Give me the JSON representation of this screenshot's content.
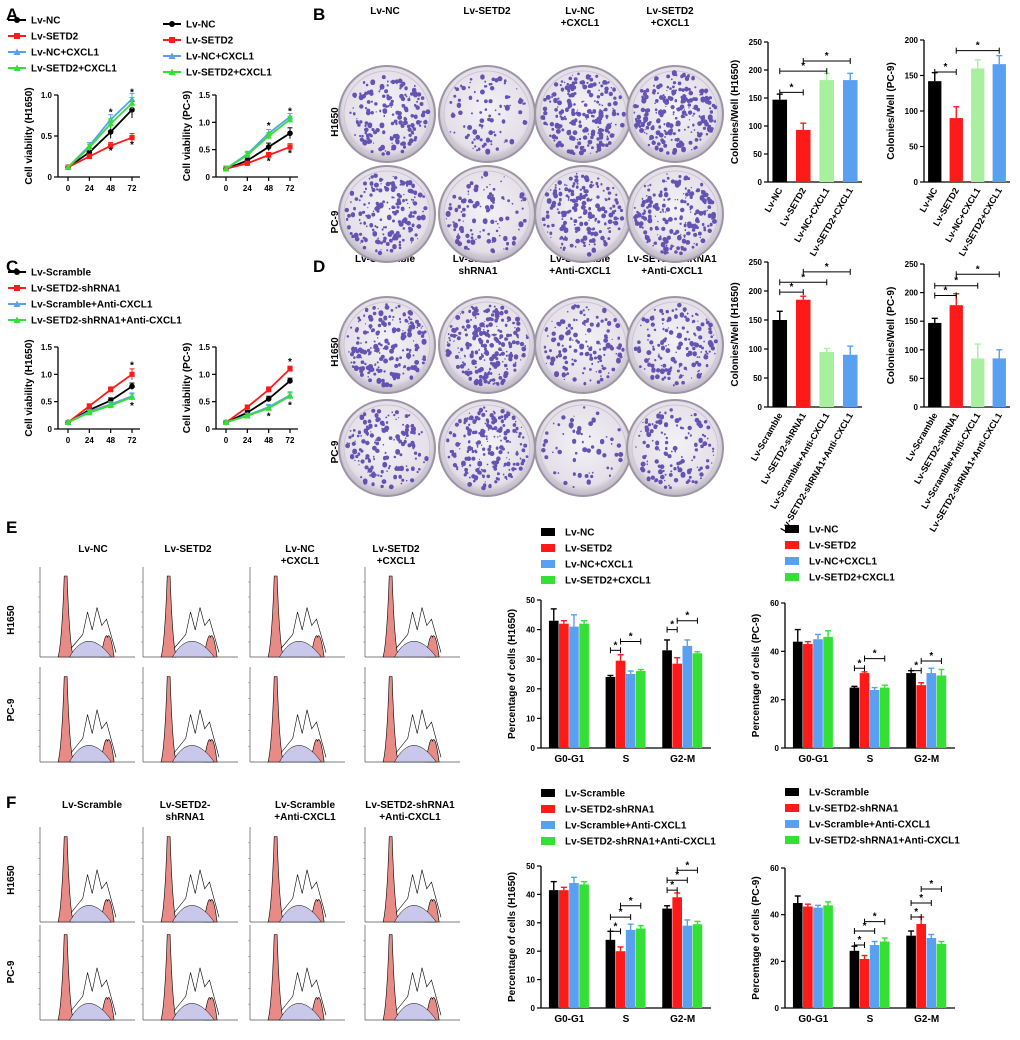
{
  "colors": {
    "black": "#000000",
    "red": "#ff1a1a",
    "blue": "#5aa0f0",
    "green": "#33e033",
    "lightgreen": "#a8f0a0"
  },
  "panels": {
    "A": "A",
    "B": "B",
    "C": "C",
    "D": "D",
    "E": "E",
    "F": "F"
  },
  "rows": {
    "h1650": "H1650",
    "pc9": "PC-9"
  },
  "star": "*",
  "groups_nc": [
    "Lv-NC",
    "Lv-SETD2",
    "Lv-NC+CXCL1",
    "Lv-SETD2+CXCL1"
  ],
  "groups_scr": [
    "Lv-Scramble",
    "Lv-SETD2-shRNA1",
    "Lv-Scramble+Anti-CXCL1",
    "Lv-SETD2-shRNA1+Anti-CXCL1"
  ],
  "col_titles_b": [
    [
      "Lv-NC",
      ""
    ],
    [
      "Lv-SETD2",
      ""
    ],
    [
      "Lv-NC",
      "+CXCL1"
    ],
    [
      "Lv-SETD2",
      "+CXCL1"
    ]
  ],
  "col_titles_d": [
    [
      "Lv-Scramble",
      ""
    ],
    [
      "Lv-SETD2-",
      "shRNA1"
    ],
    [
      "Lv-Scramble",
      "+Anti-CXCL1"
    ],
    [
      "Lv-SETD2-shRNA1",
      "+Anti-CXCL1"
    ]
  ],
  "col_titles_e": [
    [
      "Lv-NC",
      ""
    ],
    [
      "Lv-SETD2",
      ""
    ],
    [
      "Lv-NC",
      "+CXCL1"
    ],
    [
      "Lv-SETD2",
      "+CXCL1"
    ]
  ],
  "col_titles_f": [
    [
      "Lv-Scramble",
      ""
    ],
    [
      "Lv-SETD2-",
      "shRNA1"
    ],
    [
      "Lv-Scramble",
      "+Anti-CXCL1"
    ],
    [
      "Lv-SETD2-shRNA1",
      "+Anti-CXCL1"
    ]
  ],
  "chart_data": [
    {
      "id": "A1",
      "type": "line",
      "panel": "A",
      "ylabel": "Cell viability (H1650)",
      "x": [
        0,
        24,
        48,
        72
      ],
      "ylim": [
        0,
        1.0
      ],
      "yticks": [
        0,
        0.5,
        1.0
      ],
      "series_names": "groups_nc",
      "series": [
        {
          "values": [
            0.12,
            0.3,
            0.55,
            0.82
          ],
          "err": [
            0.02,
            0.04,
            0.08,
            0.1
          ]
        },
        {
          "values": [
            0.12,
            0.25,
            0.38,
            0.48
          ],
          "err": [
            0.02,
            0.03,
            0.04,
            0.05
          ]
        },
        {
          "values": [
            0.12,
            0.38,
            0.7,
            0.95
          ],
          "err": [
            0.02,
            0.04,
            0.06,
            0.07
          ]
        },
        {
          "values": [
            0.12,
            0.36,
            0.65,
            0.9
          ],
          "err": [
            0.02,
            0.04,
            0.06,
            0.07
          ]
        }
      ],
      "stars": [
        [
          48,
          0.8,
          "blue"
        ],
        [
          72,
          1.04,
          "blue"
        ],
        [
          48,
          0.33,
          "red"
        ],
        [
          72,
          0.4,
          "red"
        ]
      ]
    },
    {
      "id": "A2",
      "type": "line",
      "panel": "A",
      "ylabel": "Cell viability (PC-9)",
      "x": [
        0,
        24,
        48,
        72
      ],
      "ylim": [
        0,
        1.5
      ],
      "yticks": [
        0,
        0.5,
        1.0,
        1.5
      ],
      "series_names": "groups_nc",
      "series": [
        {
          "values": [
            0.15,
            0.3,
            0.55,
            0.8
          ],
          "err": [
            0.05,
            0.05,
            0.07,
            0.1
          ]
        },
        {
          "values": [
            0.15,
            0.25,
            0.4,
            0.55
          ],
          "err": [
            0.05,
            0.04,
            0.05,
            0.06
          ]
        },
        {
          "values": [
            0.15,
            0.42,
            0.8,
            1.1
          ],
          "err": [
            0.05,
            0.05,
            0.07,
            0.06
          ]
        },
        {
          "values": [
            0.15,
            0.4,
            0.75,
            1.05
          ],
          "err": [
            0.05,
            0.05,
            0.06,
            0.06
          ]
        }
      ],
      "stars": [
        [
          48,
          0.95,
          "blue"
        ],
        [
          72,
          1.22,
          "blue"
        ],
        [
          48,
          0.3,
          "red"
        ],
        [
          72,
          0.45,
          "red"
        ]
      ]
    },
    {
      "id": "C1",
      "type": "line",
      "panel": "C",
      "ylabel": "Cell viability (H1650)",
      "x": [
        0,
        24,
        48,
        72
      ],
      "ylim": [
        0,
        1.5
      ],
      "yticks": [
        0,
        0.5,
        1.0,
        1.5
      ],
      "series_names": "groups_scr",
      "series": [
        {
          "values": [
            0.12,
            0.35,
            0.52,
            0.78
          ],
          "err": [
            0.03,
            0.04,
            0.05,
            0.06
          ]
        },
        {
          "values": [
            0.12,
            0.42,
            0.72,
            1.0
          ],
          "err": [
            0.03,
            0.04,
            0.05,
            0.1
          ]
        },
        {
          "values": [
            0.12,
            0.32,
            0.45,
            0.6
          ],
          "err": [
            0.03,
            0.04,
            0.05,
            0.06
          ]
        },
        {
          "values": [
            0.12,
            0.3,
            0.43,
            0.58
          ],
          "err": [
            0.03,
            0.04,
            0.05,
            0.06
          ]
        }
      ],
      "stars": [
        [
          72,
          1.18,
          "red"
        ],
        [
          72,
          0.44,
          "blue"
        ]
      ]
    },
    {
      "id": "C2",
      "type": "line",
      "panel": "C",
      "ylabel": "Cell viability (PC-9)",
      "x": [
        0,
        24,
        48,
        72
      ],
      "ylim": [
        0,
        1.5
      ],
      "yticks": [
        0,
        0.5,
        1.0,
        1.5
      ],
      "series_names": "groups_scr",
      "series": [
        {
          "values": [
            0.12,
            0.3,
            0.55,
            0.88
          ],
          "err": [
            0.03,
            0.04,
            0.05,
            0.05
          ]
        },
        {
          "values": [
            0.12,
            0.4,
            0.72,
            1.1
          ],
          "err": [
            0.03,
            0.04,
            0.05,
            0.05
          ]
        },
        {
          "values": [
            0.12,
            0.25,
            0.4,
            0.62
          ],
          "err": [
            0.03,
            0.04,
            0.05,
            0.06
          ]
        },
        {
          "values": [
            0.12,
            0.24,
            0.38,
            0.6
          ],
          "err": [
            0.03,
            0.04,
            0.05,
            0.06
          ]
        }
      ],
      "stars": [
        [
          72,
          1.24,
          "red"
        ],
        [
          48,
          0.25,
          "blue"
        ],
        [
          72,
          0.45,
          "blue"
        ]
      ]
    },
    {
      "id": "B1",
      "type": "bar",
      "panel": "B",
      "ylabel": "Colonies/Well (H1650)",
      "ylim": [
        0,
        250
      ],
      "yticks": [
        0,
        50,
        100,
        150,
        200,
        250
      ],
      "categories": "groups_nc",
      "palette": [
        "black",
        "red",
        "lightgreen",
        "blue"
      ],
      "values": [
        147,
        93,
        182,
        182
      ],
      "err": [
        10,
        12,
        12,
        12
      ],
      "sig": [
        [
          0,
          1,
          160
        ],
        [
          0,
          2,
          198
        ],
        [
          1,
          3,
          216
        ]
      ]
    },
    {
      "id": "B2",
      "type": "bar",
      "panel": "B",
      "ylabel": "Colonies/Well (PC-9)",
      "ylim": [
        0,
        200
      ],
      "yticks": [
        0,
        50,
        100,
        150,
        200
      ],
      "categories": "groups_nc",
      "palette": [
        "black",
        "red",
        "lightgreen",
        "blue"
      ],
      "values": [
        142,
        90,
        160,
        166
      ],
      "err": [
        12,
        16,
        12,
        12
      ],
      "sig": [
        [
          0,
          1,
          155
        ],
        [
          1,
          3,
          185
        ]
      ]
    },
    {
      "id": "D1",
      "type": "bar",
      "panel": "D",
      "ylabel": "Colonies/Well (H1650)",
      "ylim": [
        0,
        250
      ],
      "yticks": [
        0,
        50,
        100,
        150,
        200,
        250
      ],
      "categories": "groups_scr",
      "palette": [
        "black",
        "red",
        "lightgreen",
        "blue"
      ],
      "values": [
        150,
        185,
        95,
        90
      ],
      "err": [
        15,
        6,
        6,
        15
      ],
      "sig": [
        [
          0,
          1,
          198
        ],
        [
          0,
          2,
          215
        ],
        [
          1,
          3,
          233
        ]
      ]
    },
    {
      "id": "D2",
      "type": "bar",
      "panel": "D",
      "ylabel": "Colonies/Well (PC-9)",
      "ylim": [
        0,
        250
      ],
      "yticks": [
        0,
        50,
        100,
        150,
        200,
        250
      ],
      "categories": "groups_scr",
      "palette": [
        "black",
        "red",
        "lightgreen",
        "blue"
      ],
      "values": [
        147,
        178,
        85,
        85
      ],
      "err": [
        8,
        20,
        25,
        15
      ],
      "sig": [
        [
          0,
          1,
          195
        ],
        [
          0,
          2,
          212
        ],
        [
          1,
          3,
          232
        ]
      ]
    },
    {
      "id": "E1",
      "type": "grouped_bar",
      "panel": "E",
      "ylabel": "Percentage of cells (H1650)",
      "ylim": [
        0,
        50
      ],
      "yticks": [
        0,
        10,
        20,
        30,
        40,
        50
      ],
      "categories": [
        "G0-G1",
        "S",
        "G2-M"
      ],
      "series_names": "groups_nc",
      "palette": [
        "black",
        "red",
        "blue",
        "green"
      ],
      "values": [
        [
          43,
          24,
          33
        ],
        [
          42,
          29.5,
          28.5
        ],
        [
          41,
          25,
          34.5
        ],
        [
          42,
          26,
          32
        ]
      ],
      "err": [
        [
          4,
          0.5,
          3.5
        ],
        [
          1,
          2,
          2
        ],
        [
          4,
          1,
          2
        ],
        [
          1,
          0.5,
          0.5
        ]
      ],
      "sig": [
        [
          1,
          0,
          1,
          33
        ],
        [
          1,
          1,
          3,
          36
        ],
        [
          2,
          0,
          1,
          40
        ],
        [
          2,
          1,
          3,
          43
        ]
      ]
    },
    {
      "id": "E2",
      "type": "grouped_bar",
      "panel": "E",
      "ylabel": "Percentage of cells (PC-9)",
      "ylim": [
        0,
        60
      ],
      "yticks": [
        0,
        20,
        40,
        60
      ],
      "categories": [
        "G0-G1",
        "S",
        "G2-M"
      ],
      "series_names": "groups_nc",
      "palette": [
        "black",
        "red",
        "blue",
        "green"
      ],
      "values": [
        [
          44,
          25,
          31
        ],
        [
          43,
          31,
          26
        ],
        [
          45,
          24,
          31
        ],
        [
          46,
          25,
          30
        ]
      ],
      "err": [
        [
          5,
          0.5,
          1
        ],
        [
          1,
          0.5,
          1
        ],
        [
          2,
          1,
          2
        ],
        [
          2.5,
          1,
          2.5
        ]
      ],
      "sig": [
        [
          1,
          0,
          1,
          33
        ],
        [
          1,
          1,
          3,
          37
        ],
        [
          2,
          0,
          1,
          32
        ],
        [
          2,
          1,
          3,
          36
        ]
      ]
    },
    {
      "id": "F1",
      "type": "grouped_bar",
      "panel": "F",
      "ylabel": "Percentage of cells (H1650)",
      "ylim": [
        0,
        50
      ],
      "yticks": [
        0,
        10,
        20,
        30,
        40,
        50
      ],
      "categories": [
        "G0-G1",
        "S",
        "G2-M"
      ],
      "series_names": "groups_scr",
      "palette": [
        "black",
        "red",
        "blue",
        "green"
      ],
      "values": [
        [
          41.5,
          24,
          35
        ],
        [
          41.5,
          20,
          39
        ],
        [
          44,
          27.5,
          29
        ],
        [
          43.5,
          28,
          29.5
        ]
      ],
      "err": [
        [
          3,
          3,
          1
        ],
        [
          1,
          1.5,
          1.5
        ],
        [
          2,
          2,
          2
        ],
        [
          1,
          1,
          1
        ]
      ],
      "sig": [
        [
          1,
          0,
          1,
          27
        ],
        [
          1,
          0,
          2,
          32
        ],
        [
          1,
          1,
          3,
          36
        ],
        [
          2,
          0,
          1,
          41.5
        ],
        [
          2,
          0,
          2,
          45
        ],
        [
          2,
          1,
          3,
          48.5
        ]
      ]
    },
    {
      "id": "F2",
      "type": "grouped_bar",
      "panel": "F",
      "ylabel": "Percentage of cells (PC-9)",
      "ylim": [
        0,
        60
      ],
      "yticks": [
        0,
        20,
        40,
        60
      ],
      "categories": [
        "G0-G1",
        "S",
        "G2-M"
      ],
      "series_names": "groups_scr",
      "palette": [
        "black",
        "red",
        "blue",
        "green"
      ],
      "values": [
        [
          45,
          24.5,
          31
        ],
        [
          43.5,
          21,
          36
        ],
        [
          43,
          27,
          30
        ],
        [
          44,
          28.5,
          27.5
        ]
      ],
      "err": [
        [
          3,
          2,
          2
        ],
        [
          1,
          1.5,
          3
        ],
        [
          1,
          1.5,
          1.5
        ],
        [
          1.5,
          1.5,
          1
        ]
      ],
      "sig": [
        [
          1,
          0,
          1,
          27
        ],
        [
          1,
          0,
          2,
          33
        ],
        [
          1,
          1,
          3,
          37
        ],
        [
          2,
          0,
          1,
          39
        ],
        [
          2,
          0,
          2,
          45
        ],
        [
          2,
          1,
          3,
          51
        ]
      ]
    }
  ]
}
